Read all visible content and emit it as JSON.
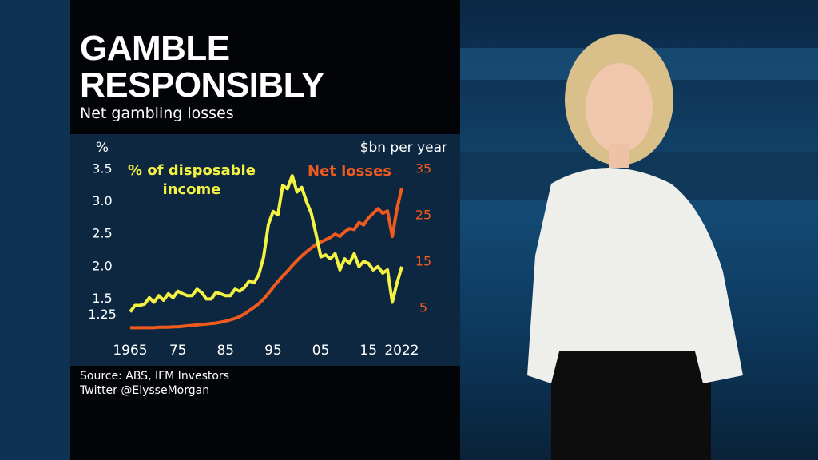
{
  "chart_data": {
    "type": "line",
    "title": "GAMBLE RESPONSIBLY",
    "subtitle": "Net gambling losses",
    "y_label": "%",
    "y2_label": "$bn per year",
    "source": "Source: ABS, IFM Investors",
    "credit": "Twitter @ElysseMorgan",
    "x": [
      1965,
      1966,
      1967,
      1968,
      1969,
      1970,
      1971,
      1972,
      1973,
      1974,
      1975,
      1976,
      1977,
      1978,
      1979,
      1980,
      1981,
      1982,
      1983,
      1984,
      1985,
      1986,
      1987,
      1988,
      1989,
      1990,
      1991,
      1992,
      1993,
      1994,
      1995,
      1996,
      1997,
      1998,
      1999,
      2000,
      2001,
      2002,
      2003,
      2004,
      2005,
      2006,
      2007,
      2008,
      2009,
      2010,
      2011,
      2012,
      2013,
      2014,
      2015,
      2016,
      2017,
      2018,
      2019,
      2020,
      2021,
      2022
    ],
    "series": [
      {
        "name": "% of disposable income",
        "color": "#f4f243",
        "values": [
          1.3,
          1.4,
          1.4,
          1.42,
          1.52,
          1.45,
          1.55,
          1.48,
          1.58,
          1.52,
          1.62,
          1.58,
          1.55,
          1.55,
          1.65,
          1.6,
          1.5,
          1.5,
          1.6,
          1.58,
          1.55,
          1.55,
          1.65,
          1.62,
          1.68,
          1.78,
          1.75,
          1.88,
          2.15,
          2.65,
          2.85,
          2.8,
          3.25,
          3.2,
          3.4,
          3.15,
          3.22,
          3.0,
          2.82,
          2.5,
          2.15,
          2.18,
          2.12,
          2.2,
          1.95,
          2.12,
          2.05,
          2.2,
          2.0,
          2.08,
          2.05,
          1.95,
          2.0,
          1.9,
          1.95,
          1.45,
          1.75,
          2.0
        ]
      },
      {
        "name": "Net losses",
        "color": "#f05a1e",
        "axis": "y2",
        "values": [
          0.8,
          0.8,
          0.8,
          0.8,
          0.8,
          0.8,
          0.9,
          0.9,
          0.9,
          1.0,
          1.0,
          1.1,
          1.2,
          1.3,
          1.4,
          1.5,
          1.6,
          1.7,
          1.8,
          2.0,
          2.2,
          2.5,
          2.8,
          3.2,
          3.8,
          4.5,
          5.2,
          6.0,
          7.0,
          8.2,
          9.5,
          10.8,
          12.0,
          13.0,
          14.2,
          15.3,
          16.3,
          17.2,
          18.0,
          18.8,
          19.3,
          19.8,
          20.3,
          21.0,
          20.5,
          21.5,
          22.2,
          22.0,
          23.5,
          23.0,
          24.5,
          25.5,
          26.5,
          25.5,
          26.0,
          20.5,
          26.5,
          31.0
        ]
      }
    ],
    "xlim": [
      1965,
      2022
    ],
    "xticks": [
      1965,
      {
        "value": 1975,
        "label": "75"
      },
      {
        "value": 1985,
        "label": "85"
      },
      {
        "value": 1995,
        "label": "95"
      },
      {
        "value": 2005,
        "label": "05"
      },
      {
        "value": 2015,
        "label": "15"
      },
      2022
    ],
    "ylim": [
      1,
      3.5
    ],
    "yticks": [
      1.25,
      1.5,
      {
        "value": 2,
        "label": "2.0"
      },
      2.5,
      {
        "value": 3,
        "label": "3.0"
      },
      3.5
    ],
    "y2lim": [
      0,
      35
    ],
    "y2ticks": [
      5,
      15,
      25,
      35
    ],
    "grid": false
  }
}
